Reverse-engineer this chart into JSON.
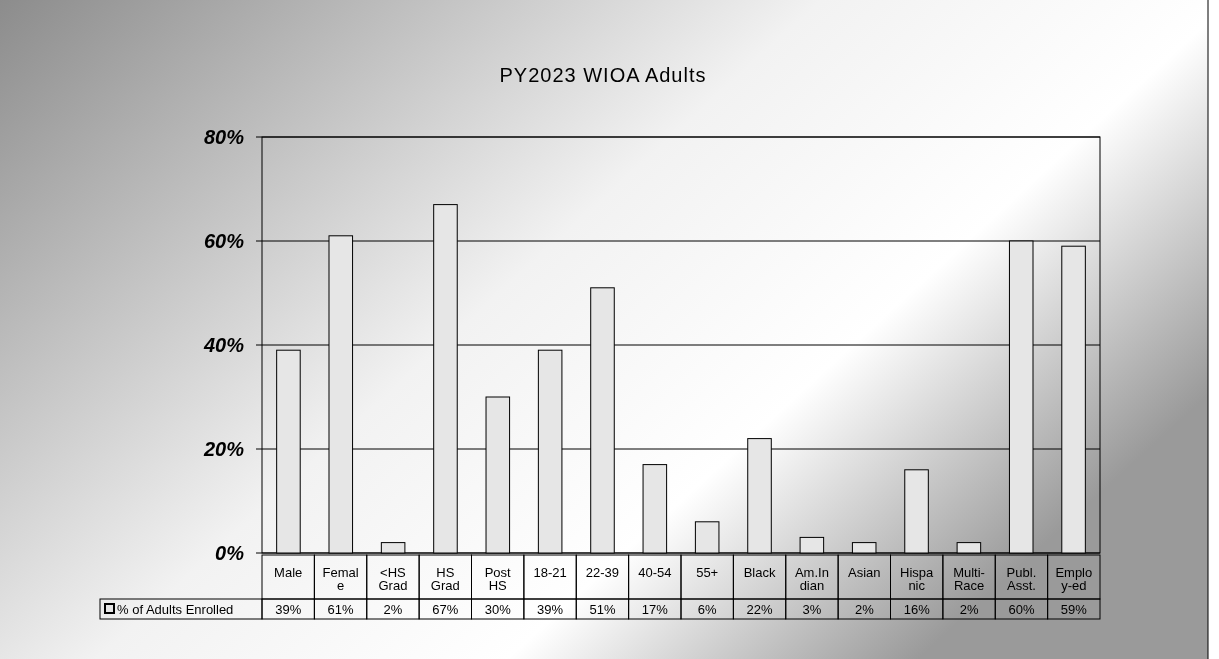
{
  "chart_data": {
    "type": "bar",
    "title": "PY2023 WIOA Adults",
    "categories": [
      "Male",
      "Female",
      "<HS Grad",
      "HS Grad",
      "Post HS",
      "18-21",
      "22-39",
      "40-54",
      "55+",
      "Black",
      "Am.Indian",
      "Asian",
      "Hispanic",
      "Multi-Race",
      "Publ. Asst.",
      "Employ-ed"
    ],
    "series": [
      {
        "name": "% of Adults Enrolled",
        "color": "#e6e6e6",
        "values": [
          39,
          61,
          2,
          67,
          30,
          39,
          51,
          17,
          6,
          22,
          3,
          2,
          16,
          2,
          60,
          59
        ],
        "value_labels": [
          "39%",
          "61%",
          "2%",
          "67%",
          "30%",
          "39%",
          "51%",
          "17%",
          "6%",
          "22%",
          "3%",
          "2%",
          "16%",
          "2%",
          "60%",
          "59%"
        ]
      }
    ],
    "ylim": [
      0,
      80
    ],
    "yticks": [
      {
        "value": 0,
        "label": "0%"
      },
      {
        "value": 20,
        "label": "20%"
      },
      {
        "value": 40,
        "label": "40%"
      },
      {
        "value": 60,
        "label": "60%"
      },
      {
        "value": 80,
        "label": "80%"
      }
    ],
    "grid": "y",
    "legend": "bottom"
  }
}
